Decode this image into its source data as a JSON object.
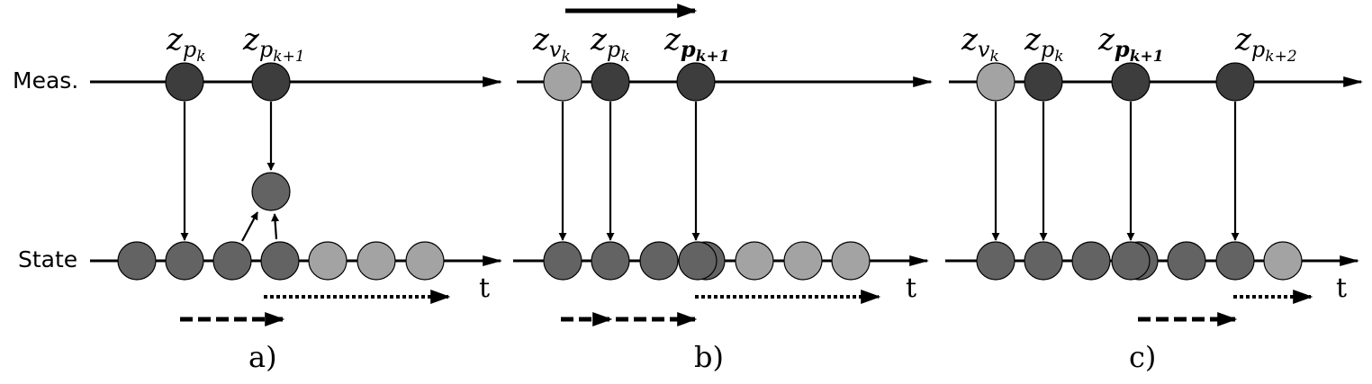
{
  "labels": {
    "measurements": "Meas.",
    "state": "State",
    "time": "t"
  },
  "colors": {
    "dark": "#3d3d3d",
    "mid": "#636363",
    "light": "#a3a3a3",
    "stroke": "#000000"
  },
  "panels": [
    {
      "caption": "a)",
      "measurements": [
        {
          "base": "z",
          "sub": "p",
          "subsub": "k",
          "kind": "dark"
        },
        {
          "base": "z",
          "sub": "p",
          "subsub": "k+1",
          "kind": "dark"
        }
      ],
      "states": [
        "mid",
        "mid",
        "mid",
        "mid",
        "light",
        "light",
        "light"
      ]
    },
    {
      "caption": "b)",
      "measurements": [
        {
          "base": "z",
          "sub": "v",
          "subsub": "k",
          "kind": "light"
        },
        {
          "base": "z",
          "sub": "p",
          "subsub": "k",
          "kind": "dark"
        },
        {
          "base": "z",
          "sub": "p",
          "subsub": "k+1",
          "kind": "dark"
        }
      ],
      "states": [
        "mid",
        "mid",
        "mid",
        "mid",
        "light",
        "light",
        "light"
      ]
    },
    {
      "caption": "c)",
      "measurements": [
        {
          "base": "z",
          "sub": "v",
          "subsub": "k",
          "kind": "light"
        },
        {
          "base": "z",
          "sub": "p",
          "subsub": "k",
          "kind": "dark"
        },
        {
          "base": "z",
          "sub": "p",
          "subsub": "k+1",
          "kind": "dark"
        },
        {
          "base": "z",
          "sub": "p",
          "subsub": "k+2",
          "kind": "dark"
        }
      ],
      "states": [
        "mid",
        "mid",
        "mid",
        "mid",
        "mid",
        "mid",
        "light"
      ]
    }
  ]
}
